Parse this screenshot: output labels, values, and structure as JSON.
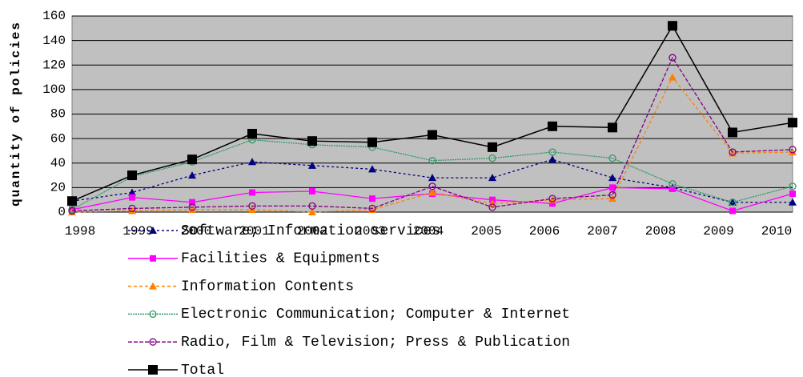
{
  "chart_data": {
    "type": "line",
    "y_label": "quantity of policies",
    "categories": [
      "1998",
      "1999",
      "2000",
      "2001",
      "2002",
      "2003",
      "2004",
      "2005",
      "2006",
      "2007",
      "2008",
      "2009",
      "2010"
    ],
    "ylim": [
      0,
      160
    ],
    "yticks": [
      0,
      20,
      40,
      60,
      80,
      100,
      120,
      140,
      160
    ],
    "grid": true,
    "series": [
      {
        "name": "Software; Information services",
        "color": "#000080",
        "marker": "triangle",
        "dash": "3,3",
        "values": [
          9,
          16,
          30,
          41,
          38,
          35,
          28,
          28,
          43,
          28,
          20,
          8,
          8
        ]
      },
      {
        "name": "Facilities & Equipments",
        "color": "#ff00ff",
        "marker": "square",
        "dash": "none",
        "values": [
          2,
          12,
          8,
          16,
          17,
          11,
          15,
          10,
          7,
          20,
          19,
          1,
          15
        ]
      },
      {
        "name": "Information Contents",
        "color": "#ff8000",
        "marker": "triangle",
        "dash": "4,3",
        "values": [
          0,
          1,
          2,
          2,
          0,
          2,
          16,
          7,
          10,
          11,
          110,
          48,
          49
        ]
      },
      {
        "name": "Electronic Communication; Computer & Internet",
        "color": "#339966",
        "marker": "circle",
        "dash": "2,1",
        "values": [
          2,
          29,
          41,
          59,
          55,
          53,
          42,
          44,
          49,
          44,
          23,
          8,
          21
        ]
      },
      {
        "name": "Radio, Film & Television; Press & Publication",
        "color": "#800080",
        "marker": "circle",
        "dash": "5,2",
        "values": [
          1,
          3,
          4,
          5,
          5,
          3,
          21,
          4,
          11,
          14,
          126,
          49,
          51
        ]
      },
      {
        "name": "Total",
        "color": "#000000",
        "marker": "bigsquare",
        "dash": "none",
        "values": [
          9,
          30,
          43,
          64,
          58,
          57,
          63,
          53,
          70,
          69,
          152,
          65,
          73
        ]
      }
    ]
  }
}
